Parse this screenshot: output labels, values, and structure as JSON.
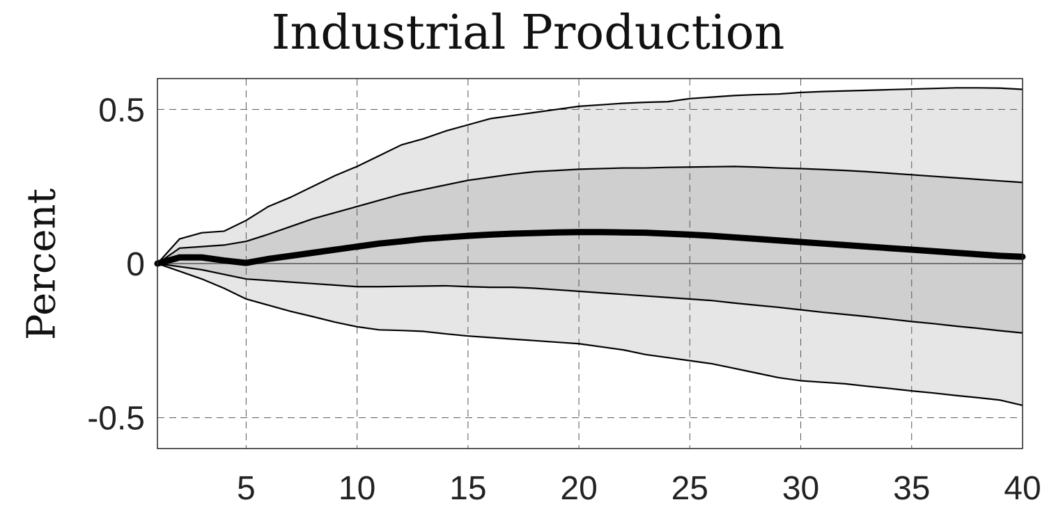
{
  "chart_data": {
    "type": "area",
    "title": "Industrial Production",
    "xlabel": "",
    "ylabel": "Percent",
    "xlim": [
      1,
      40
    ],
    "ylim": [
      -0.6,
      0.6
    ],
    "xticks": [
      5,
      10,
      15,
      20,
      25,
      30,
      35,
      40
    ],
    "yticks": [
      -0.5,
      0,
      0.5
    ],
    "ytick_labels": [
      "-0.5",
      "0",
      "0.5"
    ],
    "grid": true,
    "x": [
      1,
      2,
      3,
      4,
      5,
      6,
      7,
      8,
      9,
      10,
      11,
      12,
      13,
      14,
      15,
      16,
      17,
      18,
      19,
      20,
      21,
      22,
      23,
      24,
      25,
      26,
      27,
      28,
      29,
      30,
      31,
      32,
      33,
      34,
      35,
      36,
      37,
      38,
      39,
      40
    ],
    "series": [
      {
        "role": "outer_upper",
        "values": [
          0,
          0.08,
          0.1,
          0.105,
          0.14,
          0.185,
          0.215,
          0.25,
          0.285,
          0.315,
          0.35,
          0.385,
          0.405,
          0.43,
          0.45,
          0.47,
          0.48,
          0.49,
          0.5,
          0.51,
          0.515,
          0.52,
          0.523,
          0.525,
          0.535,
          0.54,
          0.545,
          0.548,
          0.55,
          0.555,
          0.558,
          0.56,
          0.562,
          0.564,
          0.566,
          0.568,
          0.57,
          0.57,
          0.569,
          0.565
        ]
      },
      {
        "role": "inner_upper",
        "values": [
          0,
          0.05,
          0.055,
          0.06,
          0.072,
          0.095,
          0.12,
          0.145,
          0.165,
          0.185,
          0.205,
          0.225,
          0.24,
          0.255,
          0.27,
          0.28,
          0.29,
          0.298,
          0.302,
          0.306,
          0.308,
          0.31,
          0.31,
          0.312,
          0.313,
          0.314,
          0.315,
          0.313,
          0.31,
          0.308,
          0.305,
          0.302,
          0.298,
          0.293,
          0.288,
          0.283,
          0.278,
          0.273,
          0.268,
          0.263
        ]
      },
      {
        "role": "median",
        "values": [
          0,
          0.02,
          0.02,
          0.01,
          0.002,
          0.015,
          0.025,
          0.035,
          0.045,
          0.055,
          0.065,
          0.072,
          0.08,
          0.085,
          0.09,
          0.094,
          0.097,
          0.099,
          0.101,
          0.102,
          0.102,
          0.101,
          0.1,
          0.097,
          0.094,
          0.09,
          0.085,
          0.08,
          0.075,
          0.07,
          0.065,
          0.06,
          0.055,
          0.05,
          0.045,
          0.04,
          0.035,
          0.03,
          0.025,
          0.022
        ]
      },
      {
        "role": "inner_lower",
        "values": [
          0,
          -0.01,
          -0.02,
          -0.035,
          -0.05,
          -0.055,
          -0.06,
          -0.065,
          -0.07,
          -0.075,
          -0.075,
          -0.074,
          -0.073,
          -0.072,
          -0.075,
          -0.077,
          -0.077,
          -0.08,
          -0.085,
          -0.09,
          -0.095,
          -0.1,
          -0.105,
          -0.11,
          -0.115,
          -0.12,
          -0.128,
          -0.135,
          -0.142,
          -0.15,
          -0.158,
          -0.165,
          -0.172,
          -0.18,
          -0.188,
          -0.195,
          -0.203,
          -0.21,
          -0.218,
          -0.225
        ]
      },
      {
        "role": "outer_lower",
        "values": [
          0,
          -0.025,
          -0.05,
          -0.08,
          -0.115,
          -0.135,
          -0.155,
          -0.172,
          -0.19,
          -0.205,
          -0.215,
          -0.217,
          -0.22,
          -0.228,
          -0.235,
          -0.24,
          -0.245,
          -0.25,
          -0.255,
          -0.26,
          -0.27,
          -0.28,
          -0.295,
          -0.305,
          -0.315,
          -0.325,
          -0.34,
          -0.355,
          -0.37,
          -0.38,
          -0.385,
          -0.39,
          -0.398,
          -0.405,
          -0.413,
          -0.42,
          -0.428,
          -0.435,
          -0.443,
          -0.46
        ]
      }
    ],
    "colors": {
      "outer_band": "#e6e6e6",
      "inner_band": "#cfcfcf",
      "median": "#000000",
      "band_edge": "#000000",
      "grid": "#555555",
      "zero_line": "#555555"
    }
  }
}
